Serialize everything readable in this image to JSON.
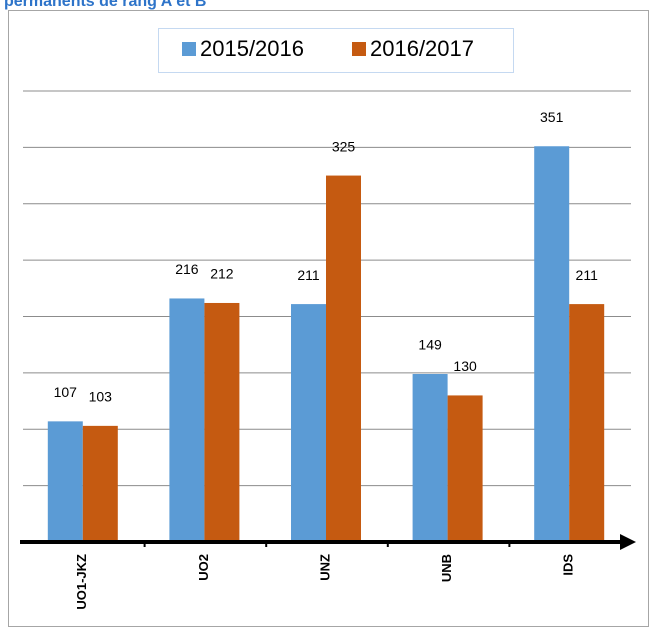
{
  "chart_data": {
    "type": "bar",
    "title": "permanents de rang A et B",
    "categories": [
      "UO1-JKZ",
      "UO2",
      "UNZ",
      "UNB",
      "IDS"
    ],
    "series": [
      {
        "name": "2015/2016",
        "color": "#5b9bd5",
        "values": [
          107,
          216,
          211,
          149,
          351
        ]
      },
      {
        "name": "2016/2017",
        "color": "#c55a11",
        "values": [
          103,
          212,
          325,
          130,
          211
        ]
      }
    ],
    "ylim": [
      0,
      400
    ],
    "yticks": [
      0,
      50,
      100,
      150,
      200,
      250,
      300,
      350,
      400
    ],
    "grid": true
  }
}
